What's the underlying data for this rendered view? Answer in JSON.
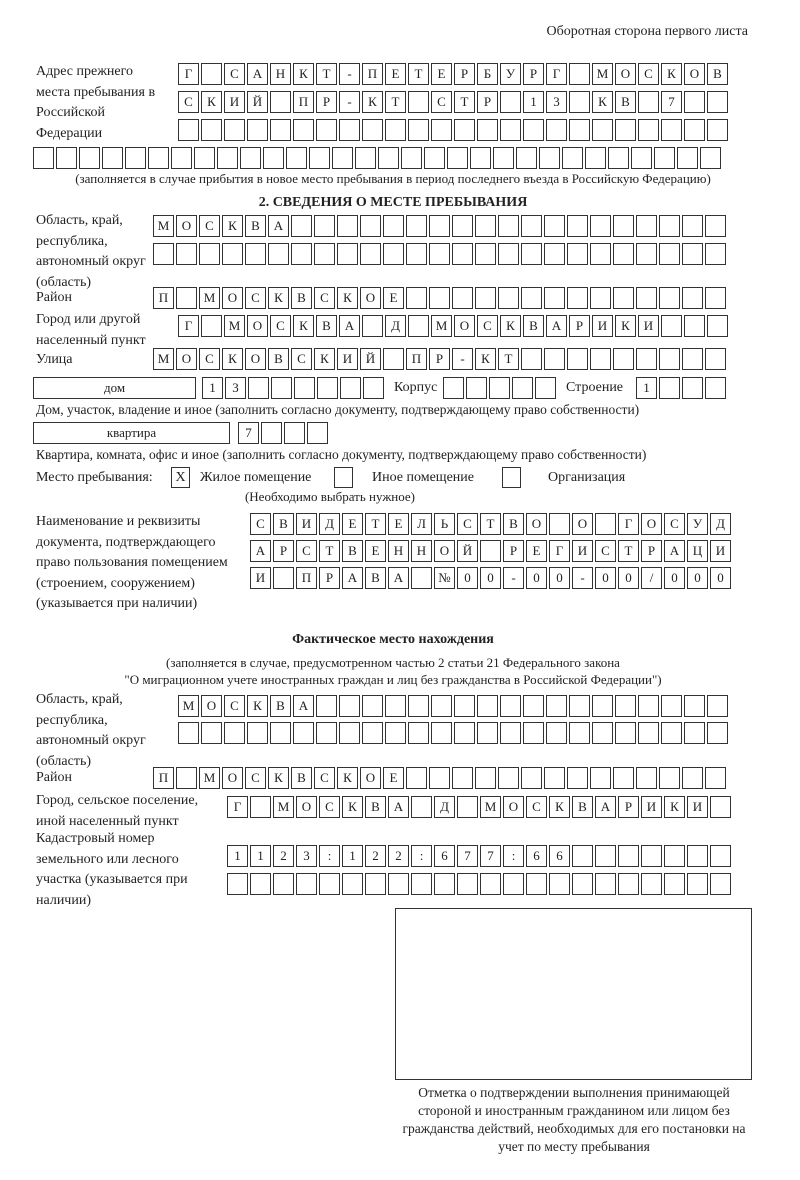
{
  "header": {
    "side_note": "Оборотная сторона первого листа"
  },
  "previous_address": {
    "label": "Адрес прежнего места пребывания в Российской Федерации",
    "rows": [
      "Г САНКТ-ПЕТЕРБУРГ МОСКОВ",
      "СКИЙ ПР-КТ СТР 13 КВ 7",
      "",
      ""
    ],
    "note": "(заполняется в случае прибытия в новое место пребывания в период последнего въезда в Российскую Федерацию)"
  },
  "section2": {
    "title": "2. СВЕДЕНИЯ О МЕСТЕ ПРЕБЫВАНИЯ",
    "region": {
      "label": "Область, край, республика, автономный округ (область)",
      "rows": [
        "МОСКВА",
        ""
      ]
    },
    "district": {
      "label": "Район",
      "value": "П МОСКВСКОЕ"
    },
    "city": {
      "label": "Город или другой населенный пункт",
      "value": "Г МОСКВА Д МОСКВАРИКИ"
    },
    "street": {
      "label": "Улица",
      "value": "МОСКОВСКИЙ ПР-КТ"
    },
    "house": {
      "type": "дом",
      "number": "13",
      "korpus_label": "Корпус",
      "korpus": "",
      "building_label": "Строение",
      "building": "1",
      "note": "Дом, участок, владение и иное (заполнить согласно документу, подтверждающему право собственности)"
    },
    "apartment": {
      "type": "квартира",
      "number": "7",
      "note": "Квартира, комната, офис и иное (заполнить согласно документу, подтверждающему право собственности)"
    },
    "place_type": {
      "label": "Место пребывания:",
      "options": [
        {
          "label": "Жилое помещение",
          "checked": true,
          "mark": "X"
        },
        {
          "label": "Иное помещение",
          "checked": false,
          "mark": ""
        },
        {
          "label": "Организация",
          "checked": false,
          "mark": ""
        }
      ],
      "hint": "(Необходимо выбрать нужное)"
    },
    "document": {
      "label": "Наименование и реквизиты документа, подтверждающего право пользования помещением (строением, сооружением) (указывается при наличии)",
      "rows": [
        "СВИДЕТЕЛЬСТВО О ГОСУД",
        "АРСТВЕННОЙ РЕГИСТРАЦИ",
        "И ПРАВА №00-00-00/000"
      ]
    }
  },
  "actual_location": {
    "title": "Фактическое место нахождения",
    "note_1": "(заполняется в случае, предусмотренном частью 2 статьи 21 Федерального закона",
    "note_2": "\"О миграционном учете иностранных граждан и лиц без гражданства в Российской Федерации\")",
    "region": {
      "label": "Область, край, республика, автономный округ (область)",
      "rows": [
        "МОСКВА",
        ""
      ]
    },
    "district": {
      "label": "Район",
      "value": "П МОСКВСКОЕ"
    },
    "city": {
      "label": "Город, сельское поселение, иной населенный пункт",
      "value": "Г МОСКВА Д МОСКВАРИКИ"
    },
    "cadastral": {
      "label": "Кадастровый номер земельного или лесного участка (указывается при наличии)",
      "rows": [
        "1123:122:677:66",
        ""
      ]
    }
  },
  "confirmation": {
    "caption": "Отметка о подтверждении выполнения принимающей стороной и иностранным гражданином или лицом без гражданства действий, необходимых для его постановки на учет по месту пребывания"
  }
}
